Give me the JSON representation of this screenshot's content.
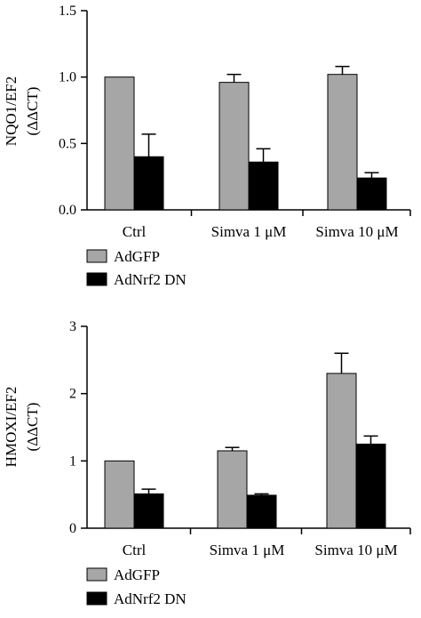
{
  "colors": {
    "AdGFP": "#a6a6a6",
    "AdNrf2 DN": "#000000",
    "axis": "#000000"
  },
  "chart_data": [
    {
      "type": "bar",
      "ylabel_lines": [
        "NQO1/EF2",
        "(ΔΔCT)"
      ],
      "categories": [
        "Ctrl",
        "Simva 1 μM",
        "Simva 10 μM"
      ],
      "ylim": [
        0,
        1.5
      ],
      "yticks": [
        "0.0",
        "0.5",
        "1.0",
        "1.5"
      ],
      "legend_position": "bottom-left",
      "series": [
        {
          "name": "AdGFP",
          "values": [
            1.0,
            0.96,
            1.02
          ],
          "errors": [
            0,
            0.06,
            0.06
          ]
        },
        {
          "name": "AdNrf2 DN",
          "values": [
            0.4,
            0.36,
            0.24
          ],
          "errors": [
            0.17,
            0.1,
            0.04
          ]
        }
      ]
    },
    {
      "type": "bar",
      "ylabel_lines": [
        "HMOXI/EF2",
        "(ΔΔCT)"
      ],
      "categories": [
        "Ctrl",
        "Simva 1 μM",
        "Simva 10 μM"
      ],
      "ylim": [
        0,
        3
      ],
      "yticks": [
        "0",
        "1",
        "2",
        "3"
      ],
      "legend_position": "bottom-left",
      "series": [
        {
          "name": "AdGFP",
          "values": [
            1.0,
            1.15,
            2.3
          ],
          "errors": [
            0,
            0.05,
            0.3
          ]
        },
        {
          "name": "AdNrf2 DN",
          "values": [
            0.51,
            0.49,
            1.25
          ],
          "errors": [
            0.07,
            0.02,
            0.12
          ]
        }
      ]
    }
  ]
}
